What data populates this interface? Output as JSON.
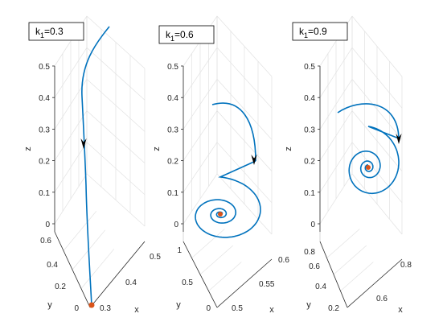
{
  "chart_data": [
    {
      "type": "line",
      "title": "",
      "annotation": {
        "label_prefix": "k",
        "label_subscript": "1",
        "label_suffix": "=0.3"
      },
      "xlabel": "x",
      "ylabel": "y",
      "zlabel": "z",
      "x_ticks": [
        "0.3",
        "0.4",
        "0.5"
      ],
      "y_ticks": [
        "0",
        "0.2",
        "0.4",
        "0.6"
      ],
      "z_ticks": [
        "0",
        "0.1",
        "0.2",
        "0.3",
        "0.4",
        "0.5"
      ],
      "zlim": [
        0,
        0.5
      ],
      "trajectory_color": "#0072BD",
      "equilibrium_color": "#D95319",
      "grid": true
    },
    {
      "type": "line",
      "title": "",
      "annotation": {
        "label_prefix": "k",
        "label_subscript": "1",
        "label_suffix": "=0.6"
      },
      "xlabel": "x",
      "ylabel": "y",
      "zlabel": "z",
      "x_ticks": [
        "0.5",
        "0.55",
        "0.6"
      ],
      "y_ticks": [
        "0",
        "0.5",
        "1"
      ],
      "z_ticks": [
        "0",
        "0.1",
        "0.2",
        "0.3",
        "0.4",
        "0.5"
      ],
      "zlim": [
        0,
        0.5
      ],
      "trajectory_color": "#0072BD",
      "equilibrium_color": "#D95319",
      "grid": true
    },
    {
      "type": "line",
      "title": "",
      "annotation": {
        "label_prefix": "k",
        "label_subscript": "1",
        "label_suffix": "=0.9"
      },
      "xlabel": "x",
      "ylabel": "y",
      "zlabel": "z",
      "x_ticks": [
        "0.6",
        "0.8"
      ],
      "y_ticks": [
        "0.2",
        "0.4",
        "0.6",
        "0.8"
      ],
      "z_ticks": [
        "0",
        "0.1",
        "0.2",
        "0.3",
        "0.4",
        "0.5"
      ],
      "zlim": [
        0,
        0.5
      ],
      "trajectory_color": "#0072BD",
      "equilibrium_color": "#D95319",
      "grid": true
    }
  ]
}
